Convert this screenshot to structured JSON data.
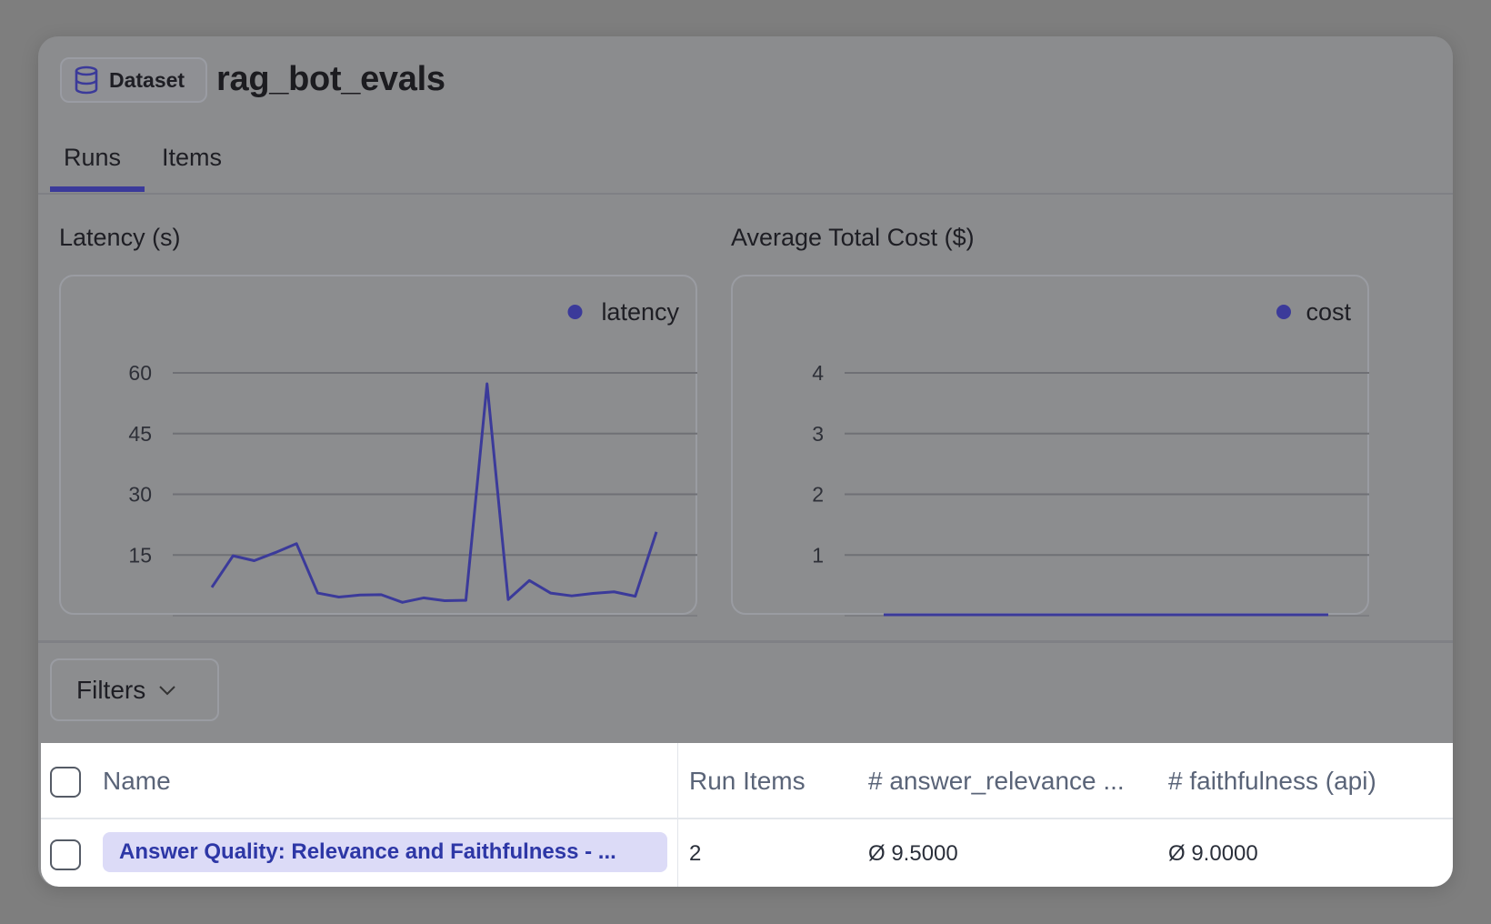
{
  "header": {
    "badge_label": "Dataset",
    "badge_icon": "database-icon",
    "title": "rag_bot_evals"
  },
  "tabs": [
    {
      "label": "Runs",
      "active": true
    },
    {
      "label": "Items",
      "active": false
    }
  ],
  "accent_color": "#3b3a9a",
  "chart_data": [
    {
      "type": "line",
      "title": "Latency (s)",
      "legend": [
        "latency"
      ],
      "legend_placement": "top-right",
      "grid": true,
      "yticks": [
        15,
        30,
        45,
        60
      ],
      "ylim": [
        0,
        60
      ],
      "series": [
        {
          "name": "latency",
          "values": [
            7.0,
            14.8,
            13.6,
            15.6,
            17.8,
            5.6,
            4.6,
            5.1,
            5.2,
            3.3,
            4.4,
            3.7,
            3.8,
            57.3,
            4.0,
            8.7,
            5.6,
            4.9,
            5.5,
            5.9,
            4.8,
            20.7
          ]
        }
      ]
    },
    {
      "type": "line",
      "title": "Average Total Cost ($)",
      "legend": [
        "cost"
      ],
      "legend_placement": "top-right",
      "grid": true,
      "yticks": [
        1,
        2,
        3,
        4
      ],
      "ylim": [
        0,
        4
      ],
      "series": [
        {
          "name": "cost",
          "values": [
            0,
            0,
            0,
            0,
            0,
            0,
            0,
            0,
            0,
            0,
            0,
            0,
            0,
            0,
            0,
            0,
            0,
            0,
            0,
            0,
            0,
            0
          ]
        }
      ]
    }
  ],
  "filters": {
    "label": "Filters"
  },
  "table": {
    "columns": [
      "Name",
      "Run Items",
      "# answer_relevance ...",
      "# faithfulness (api)"
    ],
    "rows": [
      {
        "name": "Answer Quality: Relevance and Faithfulness - ...",
        "run_items": "2",
        "answer_relevance": "Ø 9.5000",
        "faithfulness": "Ø 9.0000"
      }
    ]
  }
}
